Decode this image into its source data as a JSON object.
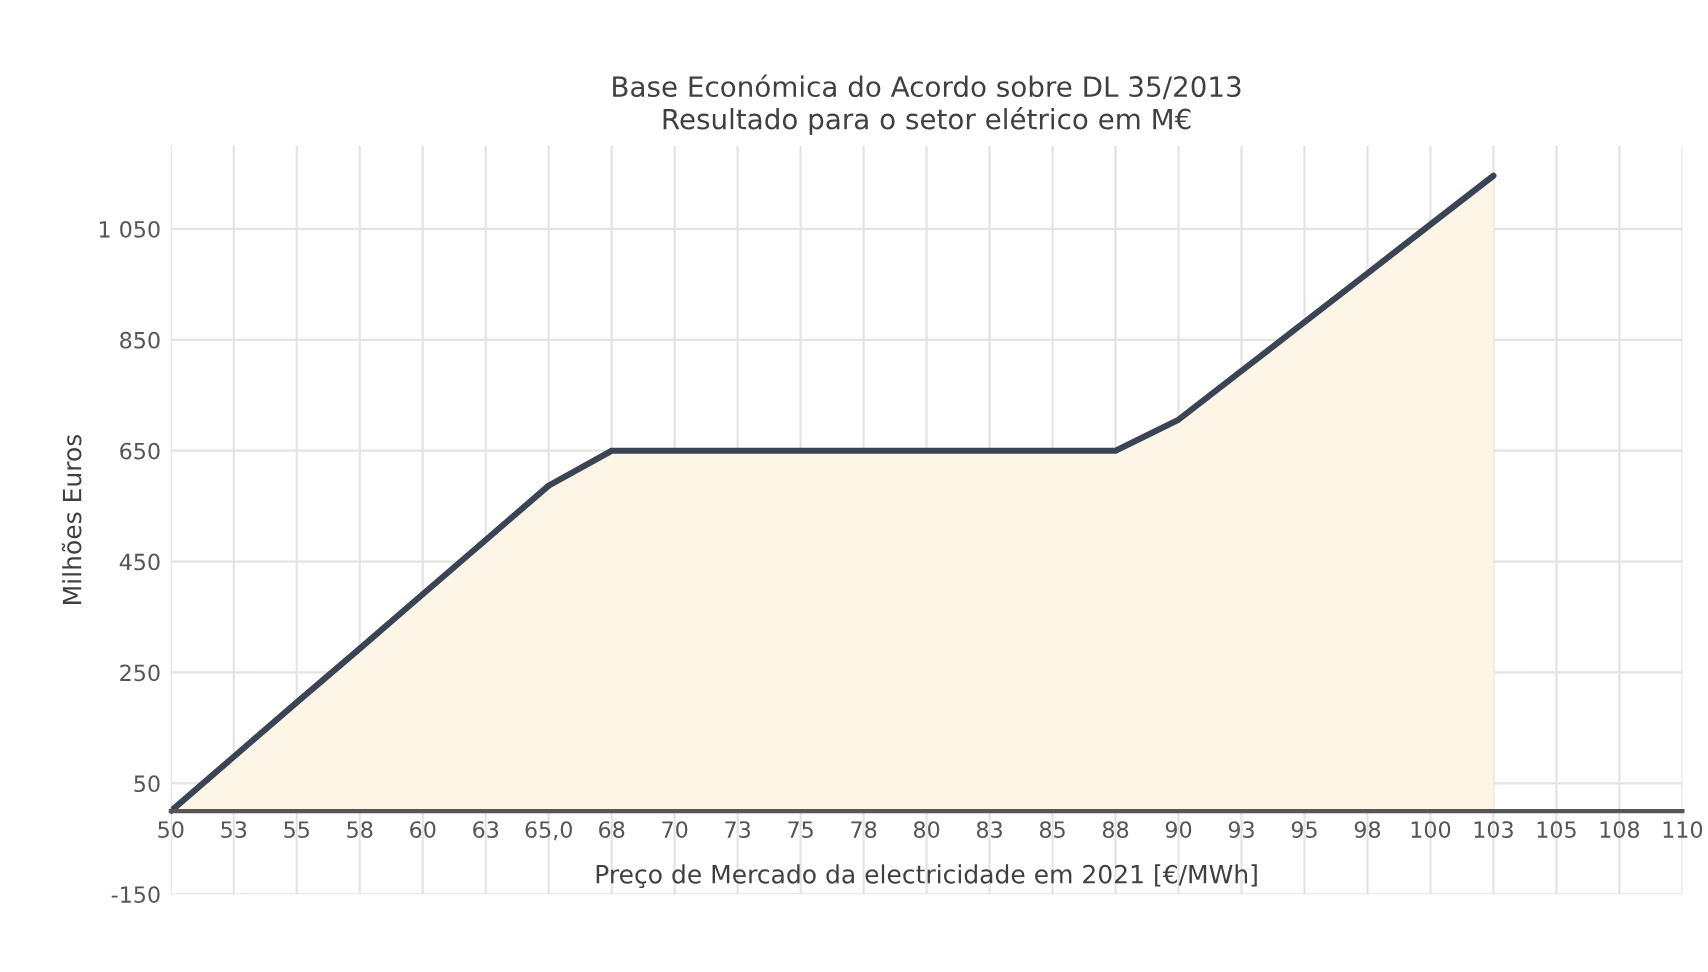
{
  "chart_data": {
    "type": "area",
    "title": "Base Económica do Acordo sobre DL 35/2013\nResultado para o setor elétrico em M€",
    "xlabel": "Preço de Mercado da electricidade em 2021 [€/MWh]",
    "ylabel": "Milhões Euros",
    "categories": [
      "50",
      "53",
      "55",
      "58",
      "60",
      "63",
      "65,0",
      "68",
      "70",
      "73",
      "75",
      "78",
      "80",
      "83",
      "85",
      "88",
      "90",
      "93",
      "95",
      "98",
      "100",
      "103",
      "105",
      "108",
      "110"
    ],
    "series": [
      {
        "color": "#3b4454",
        "values": [
          0,
          98,
          196,
          293,
          391,
          489,
          587,
          650,
          650,
          650,
          650,
          650,
          650,
          650,
          650,
          650,
          706,
          794,
          882,
          970,
          1058,
          1146,
          null,
          null,
          null
        ]
      }
    ],
    "ylim": [
      -150,
      1200
    ],
    "yticks": [
      -150,
      50,
      250,
      450,
      650,
      850,
      {
        "value": 1050,
        "label": "1 050"
      }
    ],
    "grid": true,
    "legend": false
  }
}
